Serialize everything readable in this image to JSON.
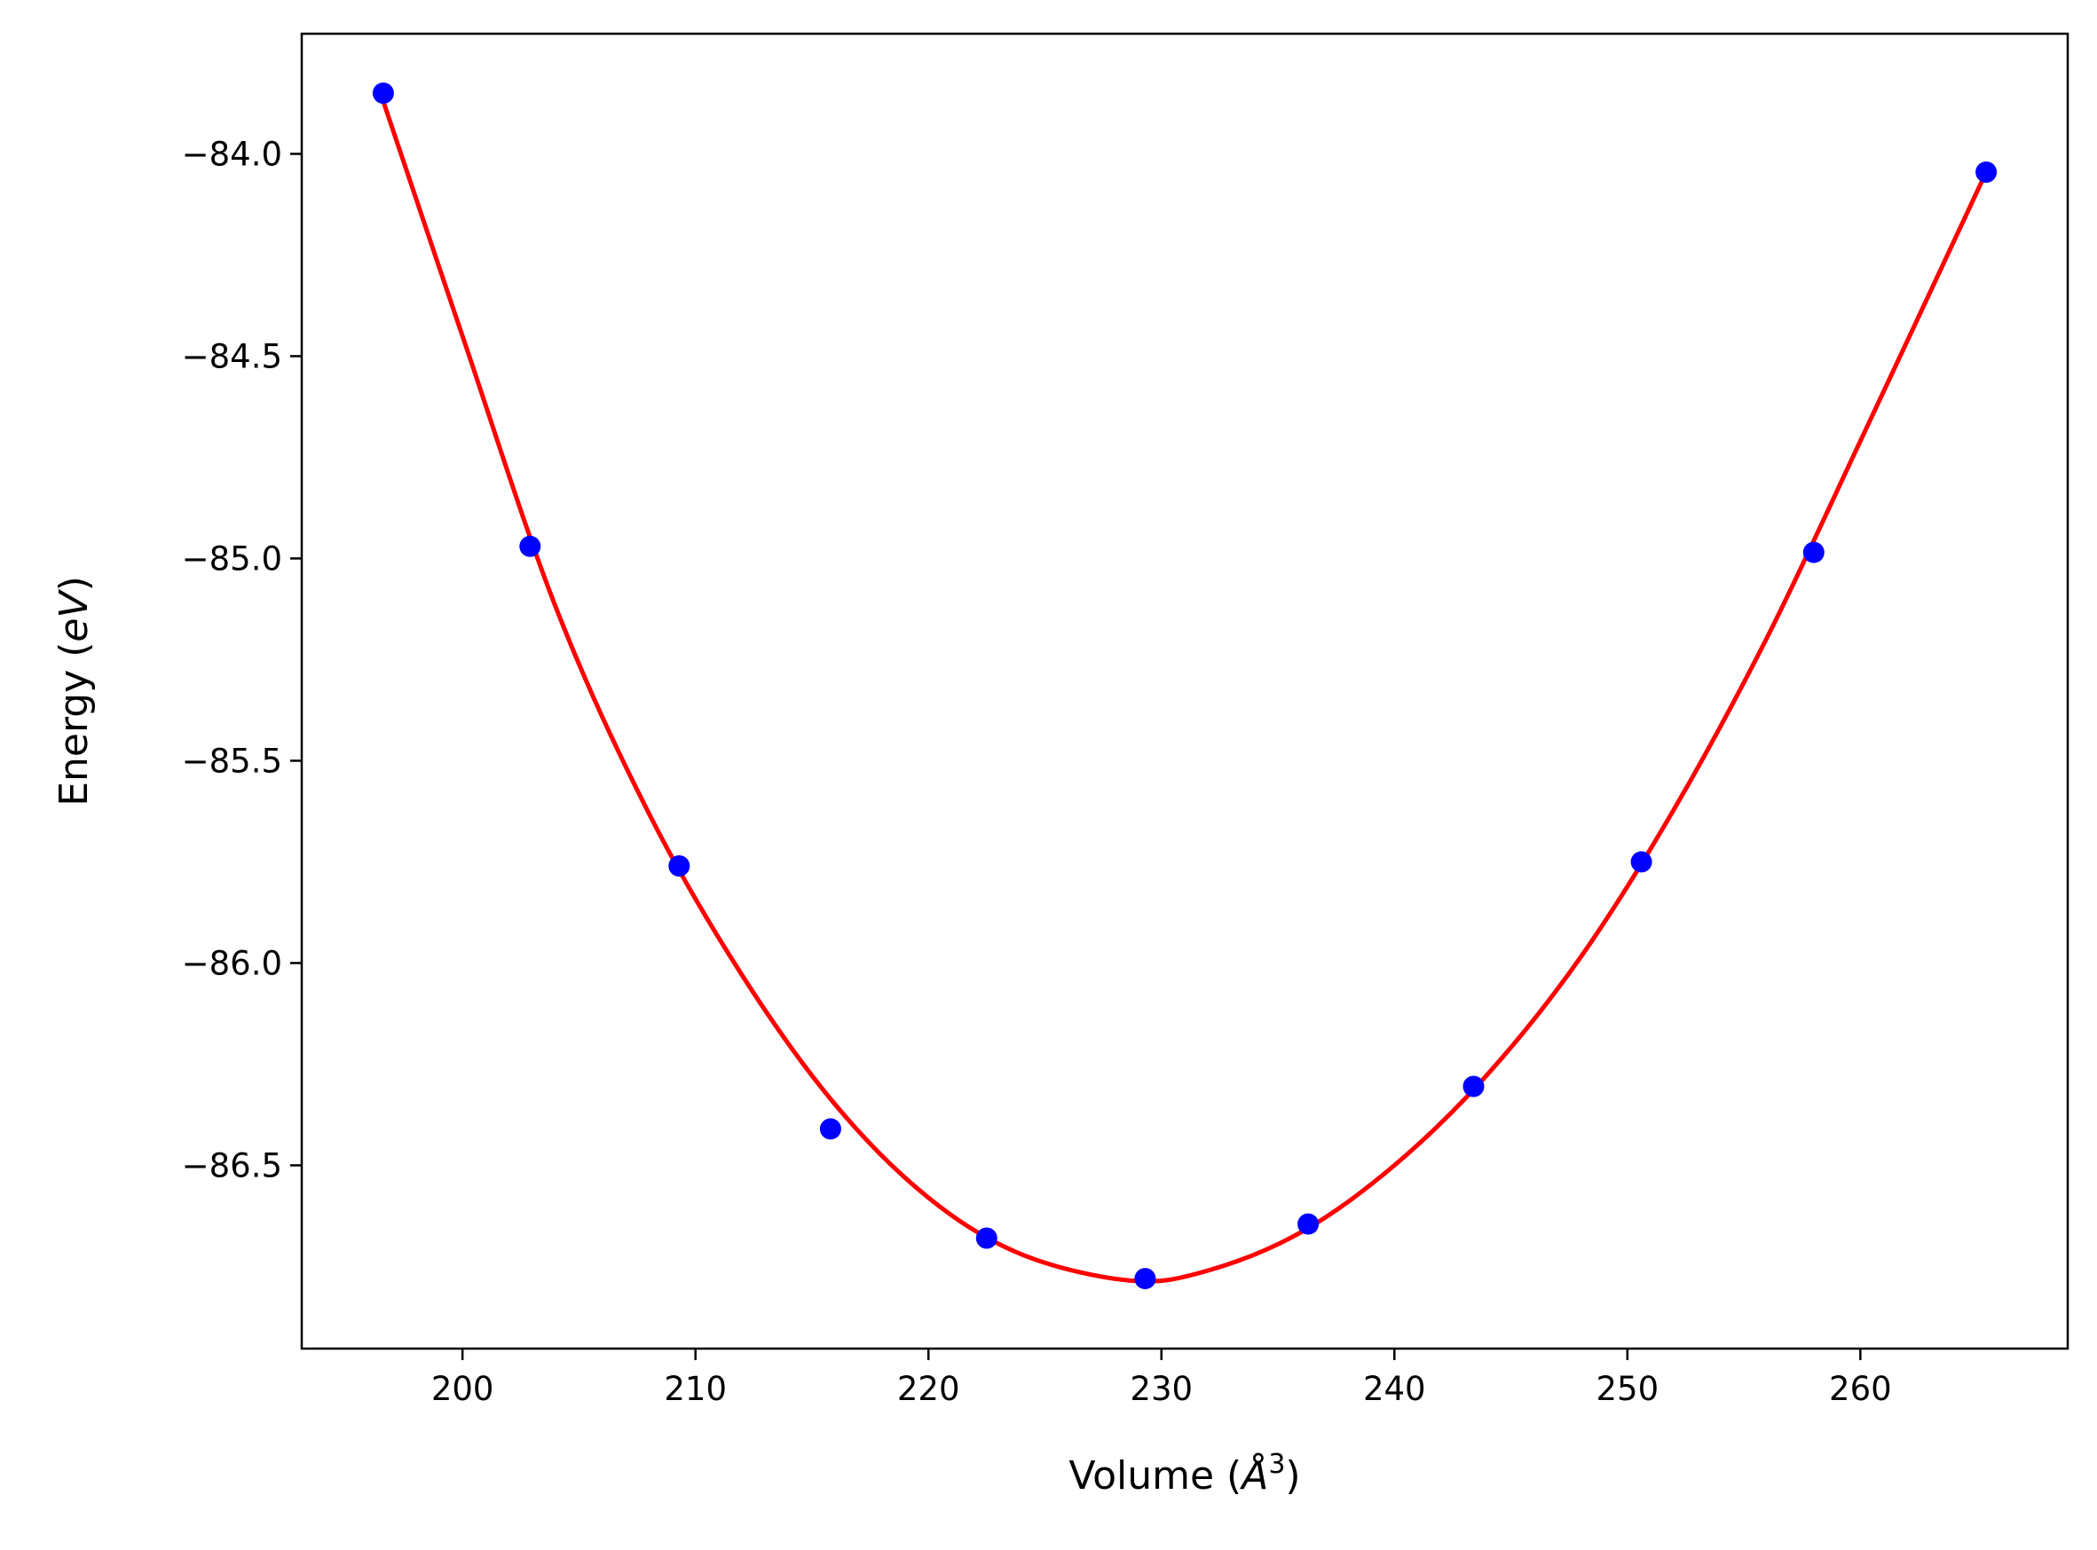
{
  "chart_data": {
    "type": "scatter",
    "title": "",
    "xlabel": {
      "prefix": "Volume (",
      "symbol": "Å",
      "sup": "3",
      "suffix": ")"
    },
    "ylabel": {
      "prefix": "Energy (",
      "symbol": "eV",
      "suffix": ")"
    },
    "xlim": [
      193.1,
      268.9
    ],
    "ylim": [
      -86.953,
      -83.703
    ],
    "x_ticks": [
      200,
      210,
      220,
      230,
      240,
      250,
      260
    ],
    "x_tick_labels": [
      "200",
      "210",
      "220",
      "230",
      "240",
      "250",
      "260"
    ],
    "y_ticks": [
      -84.0,
      -84.5,
      -85.0,
      -85.5,
      -86.0,
      -86.5
    ],
    "y_tick_labels": [
      "−84.0",
      "−84.5",
      "−85.0",
      "−85.5",
      "−86.0",
      "−86.5"
    ],
    "grid": false,
    "legend": null,
    "series": [
      {
        "kind": "points",
        "color": "#0000ff",
        "marker": "circle",
        "x": [
          196.6,
          202.9,
          209.3,
          215.8,
          222.5,
          229.3,
          236.3,
          243.4,
          250.6,
          258.0,
          265.4
        ],
        "y": [
          -83.85,
          -84.97,
          -85.76,
          -86.41,
          -86.68,
          -86.78,
          -86.645,
          -86.305,
          -85.75,
          -84.985,
          -84.045
        ]
      },
      {
        "kind": "fit-curve",
        "color": "#ff0000",
        "x": [
          196.6,
          200.0,
          204.0,
          208.0,
          212.0,
          216.0,
          220.0,
          224.0,
          228.7,
          232.0,
          236.0,
          240.0,
          244.0,
          248.0,
          252.0,
          256.0,
          260.0,
          265.4
        ],
        "y": [
          -83.87,
          -84.45,
          -85.12,
          -85.63,
          -86.03,
          -86.35,
          -86.58,
          -86.72,
          -86.785,
          -86.76,
          -86.665,
          -86.5,
          -86.275,
          -85.985,
          -85.62,
          -85.195,
          -84.71,
          -84.045
        ]
      }
    ]
  }
}
